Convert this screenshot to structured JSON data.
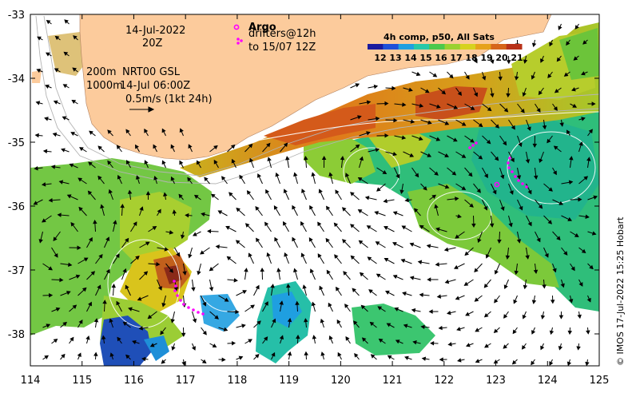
{
  "annotations": {
    "date": "14-Jul-2022",
    "time": "20Z",
    "contour_depth_1": "200m",
    "model": "NRT00 GSL",
    "contour_depth_2": "1000m",
    "model_time": "14-Jul 06:00Z",
    "scale_arrow": "0.5m/s (1kt 24h)",
    "argo_label": "Argo",
    "drifters_line1": "drifters@12h",
    "drifters_line2": "to 15/07 12Z"
  },
  "colorbar": {
    "title": "4h comp, p50, All Sats",
    "ticks": [
      "12",
      "13",
      "14",
      "15",
      "16",
      "17",
      "18",
      "19",
      "20",
      "21"
    ],
    "colors": [
      "#1a1a9e",
      "#1f4fd8",
      "#1f9fe0",
      "#27c8a8",
      "#4cc84c",
      "#9ad12f",
      "#d6d21e",
      "#e6a21a",
      "#d6651a",
      "#b8321a"
    ]
  },
  "axes": {
    "x_ticks": [
      "114",
      "115",
      "116",
      "117",
      "118",
      "119",
      "120",
      "121",
      "122",
      "123",
      "124",
      "125"
    ],
    "y_ticks": [
      "-33",
      "-34",
      "-35",
      "-36",
      "-37",
      "-38"
    ]
  },
  "credit": "© IMOS 17-Jul-2022 15:25 Hobart",
  "colors": {
    "land": "#fccb9c",
    "argo": "#ff00ff",
    "drifter": "#ff00ff"
  }
}
